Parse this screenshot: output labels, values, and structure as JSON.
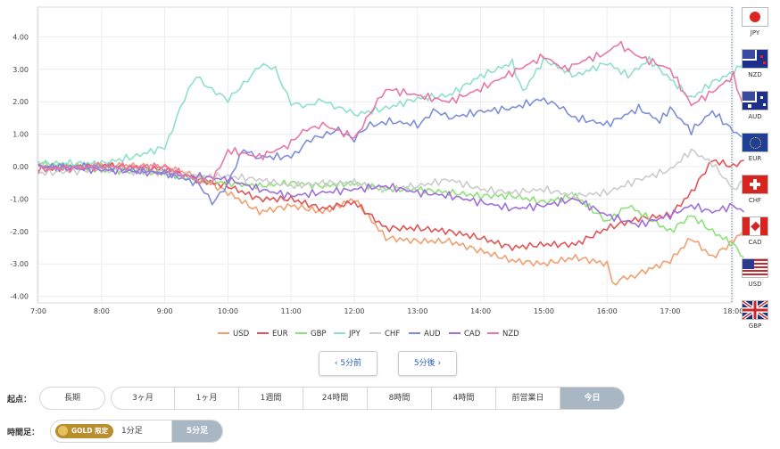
{
  "chart_data": {
    "type": "line",
    "title": "",
    "xlabel": "",
    "ylabel": "",
    "x_ticks": [
      "7:00",
      "8:00",
      "9:00",
      "10:00",
      "11:00",
      "12:00",
      "13:00",
      "14:00",
      "15:00",
      "16:00",
      "17:00",
      "18:00"
    ],
    "y_ticks": [
      "4.00",
      "3.00",
      "2.00",
      "1.00",
      "0.00",
      "-1.00",
      "-2.00",
      "-3.00",
      "-4.00"
    ],
    "xlim": [
      "7:00",
      "18:10"
    ],
    "ylim": [
      -4.2,
      4.9
    ],
    "grid": true,
    "legend_position": "bottom",
    "series": [
      {
        "name": "USD",
        "color": "#f0a070",
        "points": [
          [
            "7:00",
            0.0
          ],
          [
            "8:00",
            0.05
          ],
          [
            "9:00",
            0.0
          ],
          [
            "9:30",
            -0.3
          ],
          [
            "10:00",
            -0.8
          ],
          [
            "10:30",
            -1.4
          ],
          [
            "11:00",
            -1.2
          ],
          [
            "11:30",
            -1.4
          ],
          [
            "12:00",
            -1.0
          ],
          [
            "12:30",
            -2.2
          ],
          [
            "13:00",
            -2.3
          ],
          [
            "13:30",
            -2.3
          ],
          [
            "14:00",
            -2.6
          ],
          [
            "14:30",
            -2.9
          ],
          [
            "15:00",
            -3.0
          ],
          [
            "15:30",
            -2.8
          ],
          [
            "16:00",
            -3.0
          ],
          [
            "16:05",
            -3.6
          ],
          [
            "16:30",
            -3.3
          ],
          [
            "17:00",
            -2.9
          ],
          [
            "17:20",
            -2.2
          ],
          [
            "17:40",
            -2.8
          ],
          [
            "18:00",
            -2.3
          ],
          [
            "18:10",
            -1.9
          ]
        ]
      },
      {
        "name": "EUR",
        "color": "#e05555",
        "points": [
          [
            "7:00",
            -0.1
          ],
          [
            "8:00",
            0.05
          ],
          [
            "9:00",
            -0.1
          ],
          [
            "9:30",
            -0.4
          ],
          [
            "10:00",
            -0.6
          ],
          [
            "10:30",
            -1.0
          ],
          [
            "11:00",
            -1.0
          ],
          [
            "11:30",
            -1.3
          ],
          [
            "12:00",
            -1.1
          ],
          [
            "12:30",
            -1.9
          ],
          [
            "13:00",
            -1.9
          ],
          [
            "13:30",
            -2.0
          ],
          [
            "14:00",
            -2.2
          ],
          [
            "14:30",
            -2.5
          ],
          [
            "15:00",
            -2.4
          ],
          [
            "15:30",
            -2.4
          ],
          [
            "16:00",
            -1.9
          ],
          [
            "16:30",
            -1.6
          ],
          [
            "17:00",
            -1.5
          ],
          [
            "17:20",
            -0.8
          ],
          [
            "17:40",
            0.2
          ],
          [
            "18:00",
            0.0
          ],
          [
            "18:10",
            0.2
          ]
        ]
      },
      {
        "name": "GBP",
        "color": "#8ee07a",
        "points": [
          [
            "7:00",
            0.1
          ],
          [
            "8:00",
            -0.1
          ],
          [
            "9:00",
            -0.2
          ],
          [
            "9:30",
            -0.4
          ],
          [
            "10:00",
            -0.5
          ],
          [
            "10:30",
            -0.6
          ],
          [
            "11:00",
            -0.5
          ],
          [
            "11:30",
            -0.6
          ],
          [
            "12:00",
            -0.5
          ],
          [
            "12:30",
            -0.7
          ],
          [
            "13:00",
            -0.7
          ],
          [
            "13:30",
            -0.8
          ],
          [
            "14:00",
            -0.9
          ],
          [
            "14:30",
            -0.9
          ],
          [
            "15:00",
            -1.1
          ],
          [
            "15:30",
            -0.9
          ],
          [
            "16:00",
            -1.7
          ],
          [
            "16:20",
            -1.2
          ],
          [
            "16:40",
            -1.6
          ],
          [
            "17:00",
            -2.0
          ],
          [
            "17:20",
            -1.5
          ],
          [
            "17:40",
            -2.0
          ],
          [
            "18:00",
            -2.4
          ],
          [
            "18:10",
            -2.8
          ]
        ]
      },
      {
        "name": "JPY",
        "color": "#8ee0cc",
        "points": [
          [
            "7:00",
            0.1
          ],
          [
            "8:00",
            0.1
          ],
          [
            "8:30",
            0.3
          ],
          [
            "9:00",
            0.6
          ],
          [
            "9:15",
            1.8
          ],
          [
            "9:30",
            2.8
          ],
          [
            "9:45",
            2.4
          ],
          [
            "10:00",
            2.0
          ],
          [
            "10:15",
            2.6
          ],
          [
            "10:30",
            3.1
          ],
          [
            "10:45",
            3.0
          ],
          [
            "11:00",
            2.0
          ],
          [
            "11:15",
            1.8
          ],
          [
            "11:30",
            2.1
          ],
          [
            "11:45",
            1.8
          ],
          [
            "12:00",
            1.6
          ],
          [
            "12:30",
            1.8
          ],
          [
            "13:00",
            2.1
          ],
          [
            "13:30",
            2.2
          ],
          [
            "14:00",
            2.8
          ],
          [
            "14:30",
            3.2
          ],
          [
            "14:40",
            2.3
          ],
          [
            "15:00",
            3.3
          ],
          [
            "15:30",
            2.8
          ],
          [
            "16:00",
            3.2
          ],
          [
            "16:20",
            2.8
          ],
          [
            "16:40",
            3.3
          ],
          [
            "17:00",
            2.7
          ],
          [
            "17:20",
            2.1
          ],
          [
            "17:40",
            2.6
          ],
          [
            "18:00",
            2.9
          ],
          [
            "18:10",
            3.2
          ]
        ]
      },
      {
        "name": "CHF",
        "color": "#cccccc",
        "points": [
          [
            "7:00",
            -0.2
          ],
          [
            "8:00",
            -0.1
          ],
          [
            "9:00",
            -0.2
          ],
          [
            "9:30",
            -0.3
          ],
          [
            "10:00",
            -0.3
          ],
          [
            "10:30",
            -0.4
          ],
          [
            "11:00",
            -0.6
          ],
          [
            "11:30",
            -0.5
          ],
          [
            "12:00",
            -0.5
          ],
          [
            "12:30",
            -0.7
          ],
          [
            "13:00",
            -0.6
          ],
          [
            "13:30",
            -0.4
          ],
          [
            "14:00",
            -0.7
          ],
          [
            "14:30",
            -0.8
          ],
          [
            "15:00",
            -0.7
          ],
          [
            "15:30",
            -0.9
          ],
          [
            "16:00",
            -0.8
          ],
          [
            "16:30",
            -0.4
          ],
          [
            "17:00",
            -0.1
          ],
          [
            "17:20",
            0.5
          ],
          [
            "17:40",
            0.1
          ],
          [
            "18:00",
            -0.7
          ],
          [
            "18:10",
            -0.5
          ]
        ]
      },
      {
        "name": "AUD",
        "color": "#7e8ed8",
        "points": [
          [
            "7:00",
            0.0
          ],
          [
            "8:00",
            0.0
          ],
          [
            "9:00",
            -0.2
          ],
          [
            "9:30",
            -0.5
          ],
          [
            "9:45",
            -1.1
          ],
          [
            "10:00",
            -0.5
          ],
          [
            "10:15",
            0.5
          ],
          [
            "10:30",
            0.3
          ],
          [
            "11:00",
            0.3
          ],
          [
            "11:15",
            0.8
          ],
          [
            "11:30",
            0.9
          ],
          [
            "11:45",
            1.2
          ],
          [
            "12:00",
            0.8
          ],
          [
            "12:15",
            1.3
          ],
          [
            "12:30",
            1.4
          ],
          [
            "13:00",
            1.3
          ],
          [
            "13:15",
            1.7
          ],
          [
            "13:30",
            1.5
          ],
          [
            "14:00",
            1.7
          ],
          [
            "14:30",
            1.8
          ],
          [
            "15:00",
            2.1
          ],
          [
            "15:15",
            1.8
          ],
          [
            "15:30",
            1.5
          ],
          [
            "16:00",
            1.3
          ],
          [
            "16:30",
            1.8
          ],
          [
            "16:50",
            1.4
          ],
          [
            "17:00",
            1.8
          ],
          [
            "17:20",
            1.1
          ],
          [
            "17:40",
            1.7
          ],
          [
            "18:00",
            1.1
          ],
          [
            "18:10",
            0.9
          ]
        ]
      },
      {
        "name": "CAD",
        "color": "#a070d8",
        "points": [
          [
            "7:00",
            0.0
          ],
          [
            "8:00",
            -0.1
          ],
          [
            "9:00",
            -0.2
          ],
          [
            "9:30",
            -0.3
          ],
          [
            "10:00",
            -0.4
          ],
          [
            "10:30",
            -0.7
          ],
          [
            "11:00",
            -0.9
          ],
          [
            "11:30",
            -0.8
          ],
          [
            "12:00",
            -0.7
          ],
          [
            "12:30",
            -0.6
          ],
          [
            "13:00",
            -0.8
          ],
          [
            "13:30",
            -0.9
          ],
          [
            "14:00",
            -1.1
          ],
          [
            "14:30",
            -1.3
          ],
          [
            "15:00",
            -1.2
          ],
          [
            "15:30",
            -1.0
          ],
          [
            "16:00",
            -1.5
          ],
          [
            "16:30",
            -1.8
          ],
          [
            "17:00",
            -1.5
          ],
          [
            "17:20",
            -1.2
          ],
          [
            "17:40",
            -1.4
          ],
          [
            "18:00",
            -1.2
          ],
          [
            "18:10",
            -1.4
          ]
        ]
      },
      {
        "name": "NZD",
        "color": "#e878a8",
        "points": [
          [
            "7:00",
            -0.1
          ],
          [
            "8:00",
            0.0
          ],
          [
            "9:00",
            0.0
          ],
          [
            "9:30",
            -0.4
          ],
          [
            "9:45",
            -0.5
          ],
          [
            "10:00",
            0.5
          ],
          [
            "10:30",
            0.3
          ],
          [
            "11:00",
            0.7
          ],
          [
            "11:15",
            1.2
          ],
          [
            "11:30",
            1.3
          ],
          [
            "12:00",
            0.9
          ],
          [
            "12:15",
            1.6
          ],
          [
            "12:30",
            2.4
          ],
          [
            "13:00",
            2.2
          ],
          [
            "13:30",
            2.0
          ],
          [
            "14:00",
            2.4
          ],
          [
            "14:30",
            2.9
          ],
          [
            "15:00",
            3.4
          ],
          [
            "15:20",
            3.0
          ],
          [
            "15:40",
            3.3
          ],
          [
            "16:00",
            3.5
          ],
          [
            "16:10",
            3.8
          ],
          [
            "16:30",
            3.4
          ],
          [
            "17:00",
            3.0
          ],
          [
            "17:20",
            1.9
          ],
          [
            "17:40",
            2.3
          ],
          [
            "18:00",
            2.8
          ],
          [
            "18:10",
            1.8
          ]
        ]
      }
    ]
  },
  "flags": [
    {
      "code": "JPY"
    },
    {
      "code": "NZD"
    },
    {
      "code": "AUD"
    },
    {
      "code": "EUR"
    },
    {
      "code": "CHF"
    },
    {
      "code": "CAD"
    },
    {
      "code": "USD"
    },
    {
      "code": "GBP"
    }
  ],
  "nav": {
    "prev_label": "‹ 5分前",
    "next_label": "5分後 ›"
  },
  "start_point": {
    "label": "起点：",
    "options": [
      "長期",
      "3ヶ月",
      "1ヶ月",
      "1週間",
      "24時間",
      "8時間",
      "4時間",
      "前営業日",
      "今日"
    ],
    "selected": "今日"
  },
  "timeframe": {
    "label": "時間足：",
    "gold_text": "GOLD 限定",
    "options": [
      "1分足",
      "5分足"
    ],
    "selected": "5分足"
  }
}
